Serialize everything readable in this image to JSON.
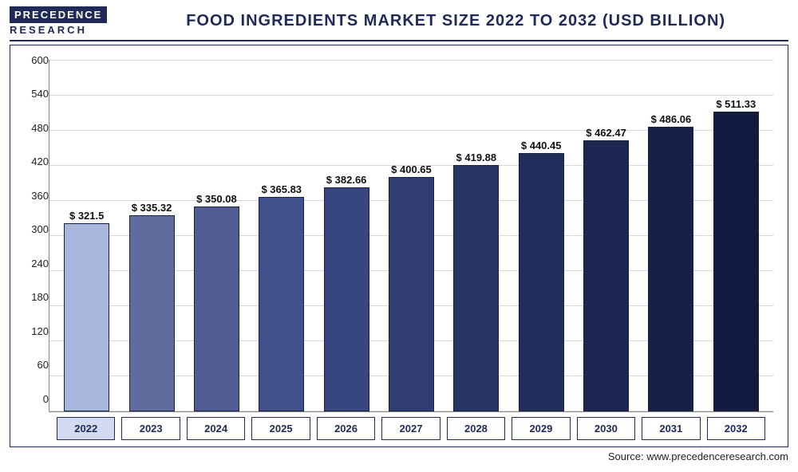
{
  "logo": {
    "top": "PRECEDENCE",
    "bottom": "RESEARCH"
  },
  "title": "FOOD INGREDIENTS MARKET SIZE 2022 TO 2032 (USD BILLION)",
  "source": "Source: www.precedenceresearch.com",
  "chart": {
    "type": "bar",
    "ylim": [
      0,
      600
    ],
    "ytick_step": 60,
    "yticks": [
      "600",
      "540",
      "480",
      "420",
      "360",
      "300",
      "240",
      "180",
      "120",
      "60",
      "0"
    ],
    "grid_color": "#d9d9d9",
    "axis_color": "#888888",
    "background_color": "#ffffff",
    "title_color": "#1f2a56",
    "label_fontsize": 13,
    "title_fontsize": 20,
    "bar_width": 0.7,
    "categories": [
      "2022",
      "2023",
      "2024",
      "2025",
      "2026",
      "2027",
      "2028",
      "2029",
      "2030",
      "2031",
      "2032"
    ],
    "values": [
      321.5,
      335.32,
      350.08,
      365.83,
      382.66,
      400.65,
      419.88,
      440.45,
      462.47,
      486.06,
      511.33
    ],
    "value_labels": [
      "$ 321.5",
      "$ 335.32",
      "$ 350.08",
      "$ 365.83",
      "$ 382.66",
      "$ 400.65",
      "$ 419.88",
      "$ 440.45",
      "$ 462.47",
      "$ 486.06",
      "$ 511.33"
    ],
    "bar_colors": [
      "#aab7dc",
      "#5f6d9e",
      "#4f5d94",
      "#414f8a",
      "#38467f",
      "#303d73",
      "#273465",
      "#212d5b",
      "#1b2750",
      "#162147",
      "#121c40"
    ],
    "selected_index": 0,
    "x_label_selected_bg": "#d2dbf1",
    "x_label_color": "#1f2a56"
  }
}
